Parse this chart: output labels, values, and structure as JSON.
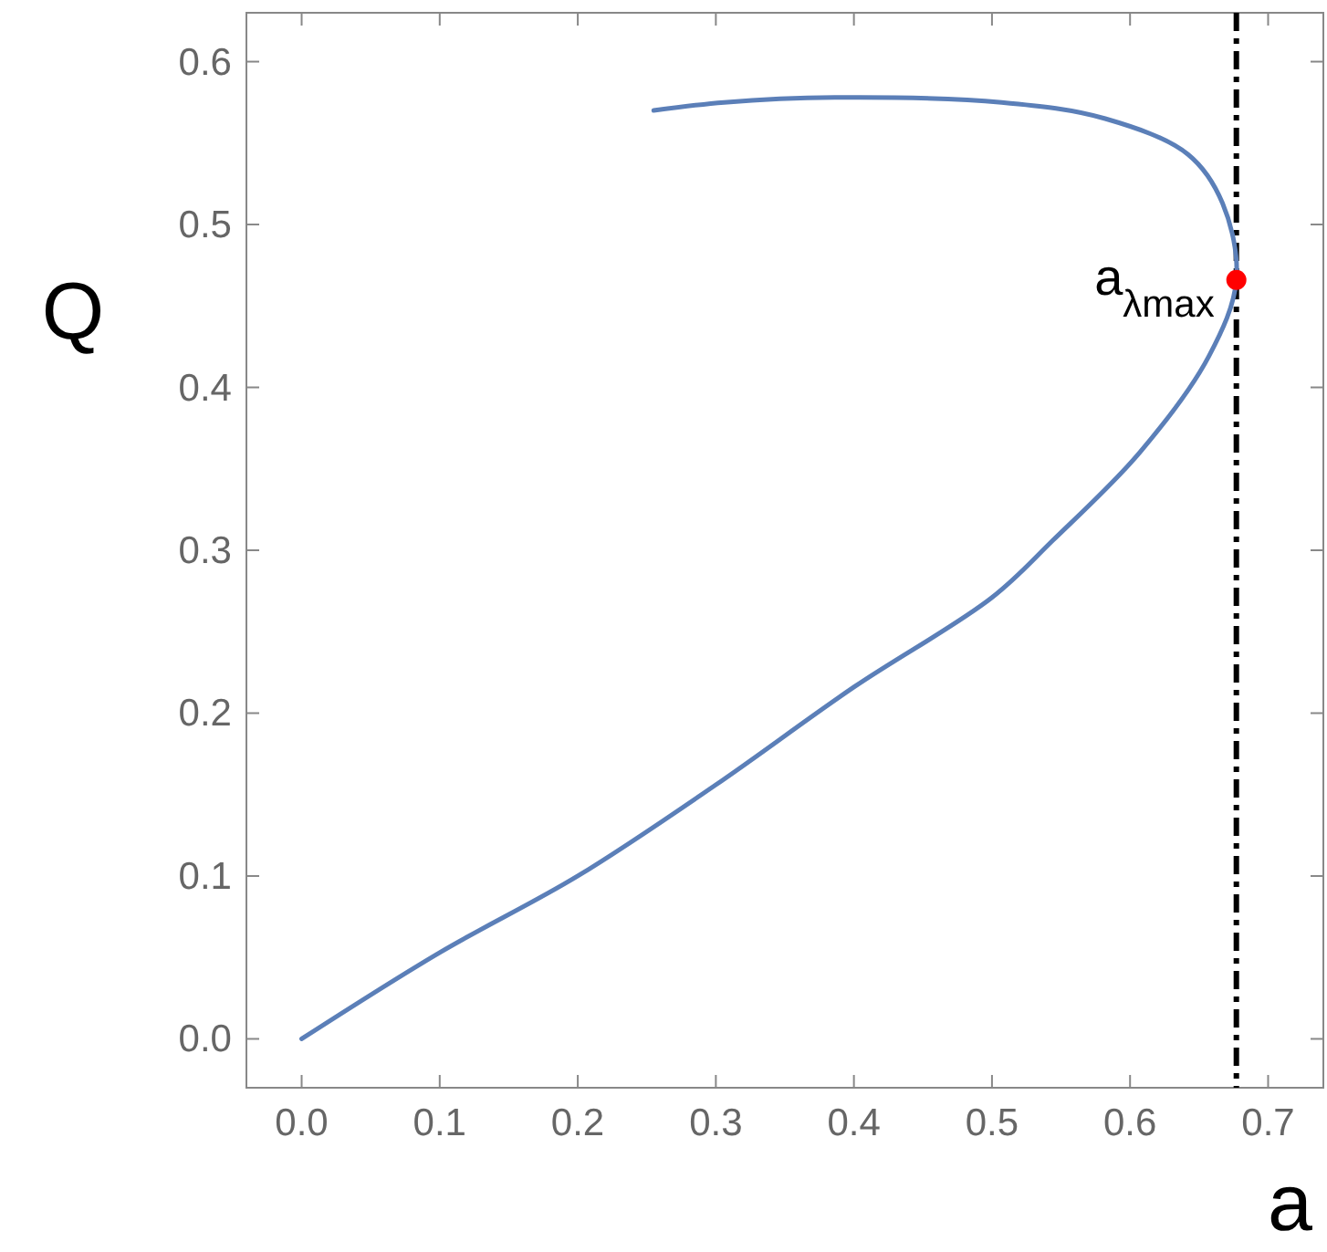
{
  "chart_data": {
    "type": "line",
    "xlabel": "a",
    "ylabel": "Q",
    "xlim": [
      -0.04,
      0.74
    ],
    "ylim": [
      -0.03,
      0.63
    ],
    "xticks": [
      {
        "value": 0,
        "label": "0.0"
      },
      0.1,
      0.2,
      0.3,
      0.4,
      0.5,
      0.6,
      0.7
    ],
    "yticks": [
      {
        "value": 0,
        "label": "0.0"
      },
      0.1,
      0.2,
      0.3,
      0.4,
      0.5,
      0.6
    ],
    "grid": false,
    "marker": "none",
    "line_style": "solid",
    "series": [
      {
        "color": "#5b7fb8",
        "x": [
          0.255,
          0.306,
          0.386,
          0.507,
          0.582,
          0.642,
          0.667,
          0.677,
          0.657,
          0.607,
          0.544,
          0.5,
          0.4,
          0.3,
          0.2,
          0.1,
          0
        ],
        "values": [
          0.57,
          0.575,
          0.578,
          0.575,
          0.565,
          0.543,
          0.513,
          0.466,
          0.419,
          0.36,
          0.306,
          0.271,
          0.216,
          0.156,
          0.1,
          0.053,
          0
        ]
      },
      {
        "type": "scatter",
        "color": "#ff0000",
        "marker": "circle",
        "x": [
          0.677
        ],
        "values": [
          0.466
        ]
      }
    ],
    "ref_lines": [
      {
        "axis": "x",
        "value": 0.677,
        "color": "#000000",
        "line_style": "dashed"
      }
    ],
    "annotations": [
      {
        "text": "a$_{λmax}$",
        "x": 0.677,
        "y": 0.466
      }
    ]
  }
}
